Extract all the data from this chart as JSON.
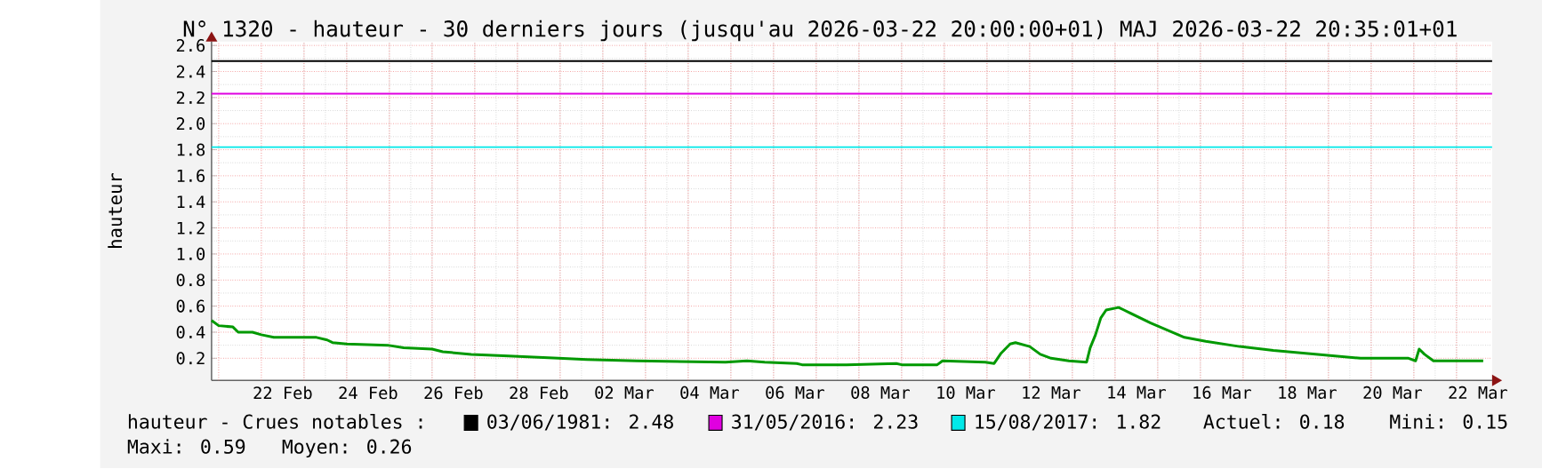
{
  "chart_data": {
    "type": "line",
    "title": "N° 1320 - hauteur - 30 derniers jours (jusqu'au 2026-03-22 20:00:00+01) MAJ 2026-03-22 20:35:01+01",
    "ylabel": "hauteur",
    "x": [
      "2026-02-20T20:00",
      "2026-02-21T00:00",
      "2026-02-21T08:00",
      "2026-02-21T11:00",
      "2026-02-21T19:00",
      "2026-02-22T00:00",
      "2026-02-22T07:00",
      "2026-02-23T07:00",
      "2026-02-23T13:00",
      "2026-02-23T16:00",
      "2026-02-24T00:00",
      "2026-02-24T23:00",
      "2026-02-25T08:00",
      "2026-02-26T00:00",
      "2026-02-26T06:00",
      "2026-02-26T22:00",
      "2026-02-27T16:00",
      "2026-02-28T23:00",
      "2026-03-01T15:00",
      "2026-03-02T19:00",
      "2026-03-04T21:00",
      "2026-03-05T09:00",
      "2026-03-05T19:00",
      "2026-03-06T13:00",
      "2026-03-06T16:00",
      "2026-03-07T17:00",
      "2026-03-08T21:00",
      "2026-03-09T00:00",
      "2026-03-09T20:00",
      "2026-03-09T23:00",
      "2026-03-10T23:00",
      "2026-03-11T04:00",
      "2026-03-11T08:00",
      "2026-03-11T13:00",
      "2026-03-11T16:00",
      "2026-03-12T00:00",
      "2026-03-12T06:00",
      "2026-03-12T12:00",
      "2026-03-12T22:00",
      "2026-03-13T08:00",
      "2026-03-13T10:00",
      "2026-03-13T13:00",
      "2026-03-13T16:00",
      "2026-03-13T19:00",
      "2026-03-14T02:00",
      "2026-03-14T05:00",
      "2026-03-14T20:00",
      "2026-03-15T15:00",
      "2026-03-16T03:00",
      "2026-03-16T22:00",
      "2026-03-17T17:00",
      "2026-03-18T18:00",
      "2026-03-19T18:00",
      "2026-03-20T21:00",
      "2026-03-21T01:00",
      "2026-03-21T03:00",
      "2026-03-21T06:00",
      "2026-03-21T11:00",
      "2026-03-22T15:00"
    ],
    "series": [
      {
        "color": "#009900",
        "values": [
          0.49,
          0.45,
          0.44,
          0.4,
          0.4,
          0.38,
          0.36,
          0.36,
          0.34,
          0.32,
          0.31,
          0.3,
          0.28,
          0.27,
          0.25,
          0.23,
          0.22,
          0.2,
          0.19,
          0.18,
          0.17,
          0.18,
          0.17,
          0.16,
          0.15,
          0.15,
          0.16,
          0.15,
          0.15,
          0.18,
          0.17,
          0.16,
          0.24,
          0.31,
          0.32,
          0.29,
          0.23,
          0.2,
          0.18,
          0.17,
          0.28,
          0.38,
          0.51,
          0.57,
          0.59,
          0.57,
          0.47,
          0.36,
          0.33,
          0.29,
          0.26,
          0.23,
          0.2,
          0.2,
          0.18,
          0.27,
          0.23,
          0.18,
          0.18
        ]
      }
    ],
    "xlim": [
      "2026-02-20T20:00",
      "2026-03-22T20:00"
    ],
    "xticks": [
      {
        "value": "2026-02-22T12:00",
        "label": "22 Feb"
      },
      {
        "value": "2026-02-24T12:00",
        "label": "24 Feb"
      },
      {
        "value": "2026-02-26T12:00",
        "label": "26 Feb"
      },
      {
        "value": "2026-02-28T12:00",
        "label": "28 Feb"
      },
      {
        "value": "2026-03-02T12:00",
        "label": "02 Mar"
      },
      {
        "value": "2026-03-04T12:00",
        "label": "04 Mar"
      },
      {
        "value": "2026-03-06T12:00",
        "label": "06 Mar"
      },
      {
        "value": "2026-03-08T12:00",
        "label": "08 Mar"
      },
      {
        "value": "2026-03-10T12:00",
        "label": "10 Mar"
      },
      {
        "value": "2026-03-12T12:00",
        "label": "12 Mar"
      },
      {
        "value": "2026-03-14T12:00",
        "label": "14 Mar"
      },
      {
        "value": "2026-03-16T12:00",
        "label": "16 Mar"
      },
      {
        "value": "2026-03-18T12:00",
        "label": "18 Mar"
      },
      {
        "value": "2026-03-20T12:00",
        "label": "20 Mar"
      },
      {
        "value": "2026-03-22T12:00",
        "label": "22 Mar"
      }
    ],
    "ylim": [
      0.03,
      2.63
    ],
    "yticks": [
      0.2,
      0.4,
      0.6,
      0.8,
      {
        "value": 1.0,
        "label": "1.0"
      },
      1.2,
      1.4,
      1.6,
      1.8,
      {
        "value": 2.0,
        "label": "2.0"
      },
      2.2,
      2.4,
      2.6
    ],
    "ref_lines": [
      {
        "axis": "y",
        "value": 2.48,
        "label": "03/06/1981: 2.48",
        "color": "#000000"
      },
      {
        "axis": "y",
        "value": 2.23,
        "label": "31/05/2016: 2.23",
        "color": "#e000e0"
      },
      {
        "axis": "y",
        "value": 1.82,
        "label": "15/08/2017: 1.82",
        "color": "#00e8e8"
      }
    ],
    "annotations": [
      "hauteur - Crues notables :",
      "Actuel: 0.18",
      "Mini: 0.15",
      "Maxi: 0.59",
      "Moyen: 0.26"
    ],
    "grid": true,
    "legend": "bottom"
  }
}
